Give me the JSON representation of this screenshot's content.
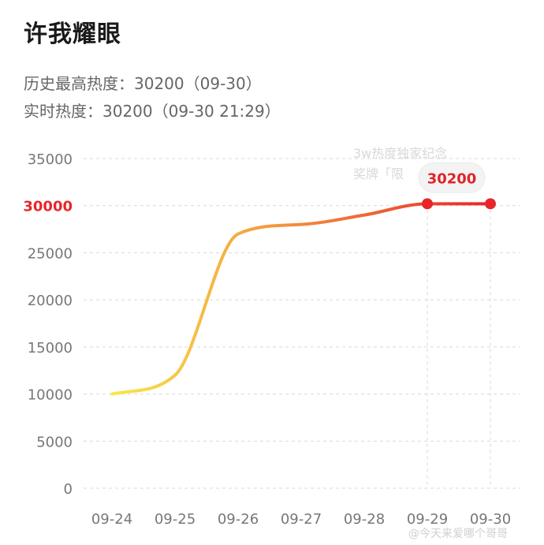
{
  "title": "许我耀眼",
  "stats": {
    "peak": "历史最高热度：30200（09-30）",
    "realtime": "实时热度：30200（09-30 21:29）"
  },
  "badge_hint": [
    "3w热度独家纪念",
    "奖牌「限"
  ],
  "watermark": "@今天来爱哪个哥哥",
  "chart_data": {
    "type": "line",
    "categories": [
      "09-24",
      "09-25",
      "09-26",
      "09-27",
      "09-28",
      "09-29",
      "09-30"
    ],
    "values": [
      10000,
      12000,
      27000,
      28000,
      29000,
      30200,
      30200
    ],
    "yticks": [
      0,
      5000,
      10000,
      15000,
      20000,
      25000,
      30000,
      35000
    ],
    "highlight_ytick": 30000,
    "ylim": [
      0,
      35000
    ],
    "highlight_label": "30200",
    "highlight_points": [
      5,
      6
    ],
    "colors": {
      "start": "#f7e84a",
      "mid": "#f5b142",
      "end": "#e8262a",
      "grid": "#d9d9d9"
    }
  }
}
